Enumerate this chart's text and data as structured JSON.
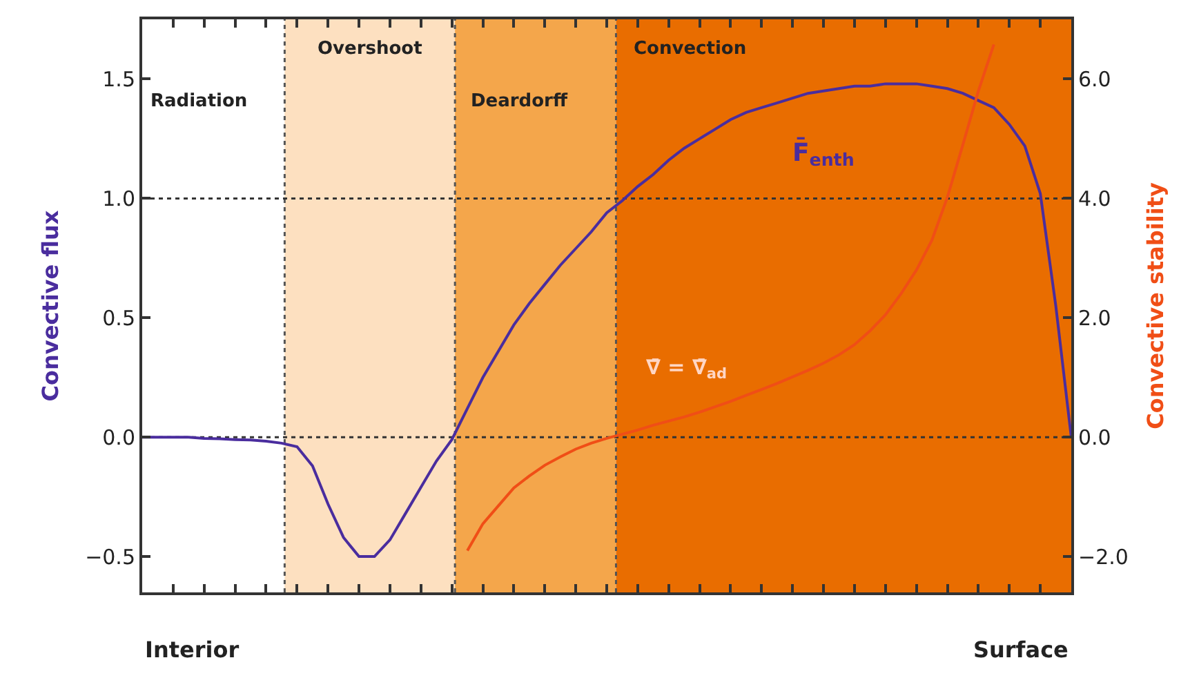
{
  "chart_data": {
    "type": "line",
    "categories": [
      null,
      null,
      null,
      null,
      null,
      null,
      null,
      null,
      null,
      null,
      null,
      null,
      null,
      null,
      null,
      null,
      null,
      null,
      null,
      null,
      null,
      null,
      null,
      null,
      null,
      null,
      null,
      null,
      null,
      null,
      null,
      null,
      null,
      null,
      null,
      null,
      null,
      null,
      null,
      null,
      null,
      null,
      null,
      null,
      null,
      null,
      null,
      null,
      null,
      null,
      null,
      null,
      null,
      null,
      null,
      null,
      null,
      null,
      null,
      null,
      null
    ],
    "ylabel": "Convective flux",
    "y2label": "Convective stability",
    "ylim": [
      -0.65,
      1.75
    ],
    "yticks": [
      {
        "value": -0.5,
        "label": "−0.5"
      },
      "0.0",
      {
        "value": 0.5,
        "label": "0.5"
      },
      {
        "value": 1.0,
        "label": "1.0"
      },
      {
        "value": 1.5,
        "label": "1.5"
      }
    ],
    "y2lim": [
      -2.6,
      7.0
    ],
    "y2ticks": [
      {
        "value": -2,
        "label": "−2.0"
      },
      {
        "value": 0,
        "label": "0.0"
      },
      {
        "value": 2,
        "label": "2.0"
      },
      {
        "value": 4,
        "label": "4.0"
      },
      {
        "value": 6,
        "label": "6.0"
      }
    ],
    "series": [
      {
        "color": "#4a2d9e",
        "values": [
          0,
          0,
          0,
          0,
          -0.005,
          -0.007,
          -0.01,
          -0.012,
          -0.017,
          -0.025,
          -0.04,
          -0.12,
          -0.28,
          -0.42,
          -0.5,
          -0.5,
          -0.43,
          -0.32,
          -0.21,
          -0.1,
          -0.01,
          0.12,
          0.25,
          0.36,
          0.47,
          0.56,
          0.64,
          0.72,
          0.79,
          0.86,
          0.94,
          0.99,
          1.05,
          1.1,
          1.16,
          1.21,
          1.25,
          1.29,
          1.33,
          1.36,
          1.38,
          1.4,
          1.42,
          1.44,
          1.45,
          1.46,
          1.47,
          1.47,
          1.48,
          1.48,
          1.48,
          1.47,
          1.46,
          1.44,
          1.41,
          1.38,
          1.31,
          1.22,
          1.02,
          0.55,
          0.0
        ]
      },
      {
        "color": "#f04e16",
        "axis": "y2",
        "values": [
          null,
          null,
          null,
          null,
          null,
          null,
          null,
          null,
          null,
          null,
          null,
          null,
          null,
          null,
          null,
          null,
          null,
          null,
          null,
          null,
          null,
          -1.9,
          -1.45,
          -1.15,
          -0.85,
          -0.65,
          -0.47,
          -0.33,
          -0.2,
          -0.1,
          -0.02,
          0.05,
          0.12,
          0.2,
          0.27,
          0.34,
          0.42,
          0.51,
          0.6,
          0.7,
          0.8,
          0.9,
          1.01,
          1.12,
          1.24,
          1.38,
          1.55,
          1.78,
          2.05,
          2.4,
          2.8,
          3.3,
          4.02,
          4.9,
          5.8,
          6.58,
          null,
          null,
          null,
          null,
          null
        ]
      }
    ],
    "ref_lines": [
      {
        "axis": "y",
        "value": 0.0,
        "line_style": "dotted",
        "color": "#333333"
      },
      {
        "axis": "y",
        "value": 1.0,
        "line_style": "dotted",
        "color": "#333333"
      }
    ],
    "annotations": [
      "Radiation",
      "Overshoot",
      "Deardorff",
      "Convection",
      "F̄$_{enth}$",
      "∇̄ = ∇̄$_{ad}$",
      "Interior",
      "Surface"
    ],
    "grid": false,
    "marker": "none",
    "line_style": "solid",
    "tick_labels": "y"
  }
}
